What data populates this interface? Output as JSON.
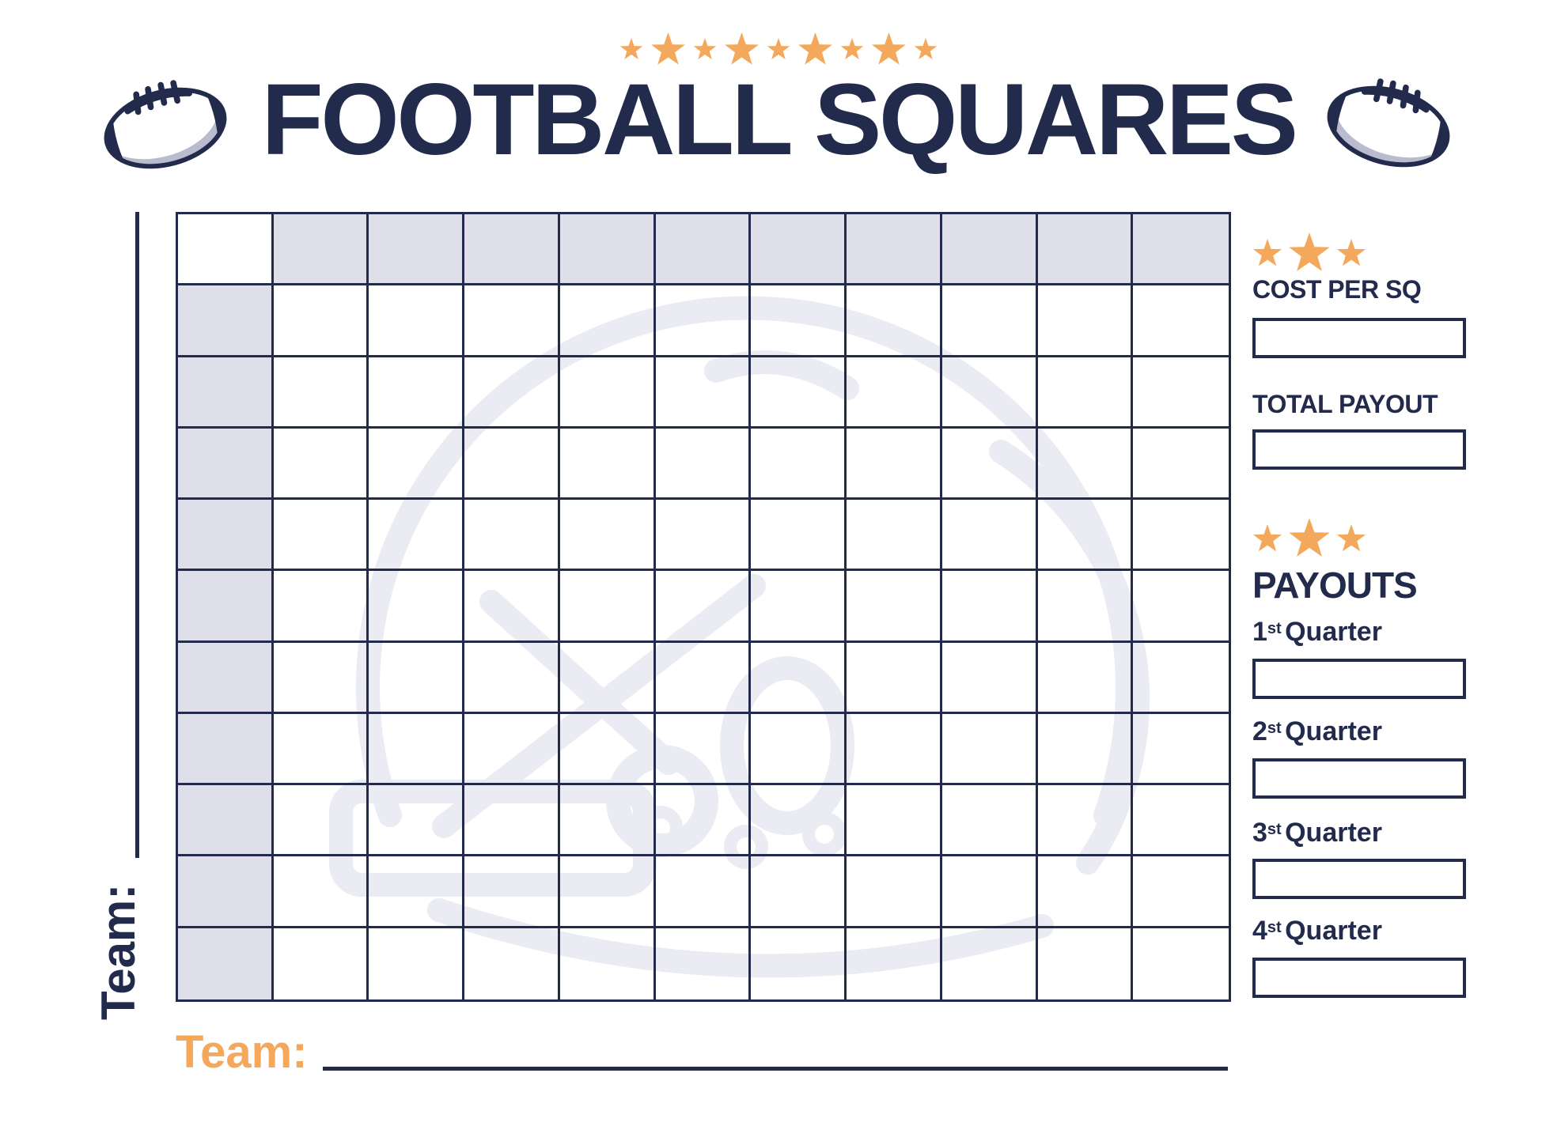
{
  "theme": {
    "navy": "#232B4D",
    "orange": "#F4A85C",
    "cell_shade": "#DEDFE8",
    "watermark": "#EAEBF3",
    "gray_shadow": "#B9BCCE"
  },
  "header": {
    "title": "FOOTBALL SQUARES",
    "stars_count": 9
  },
  "grid": {
    "rows": 11,
    "cols": 11,
    "shaded_top_row": true,
    "shaded_left_col": true,
    "corner_cell_shaded": false
  },
  "team_left": {
    "label": "Team:"
  },
  "team_bottom": {
    "label": "Team:"
  },
  "sidebar": {
    "stars_per_row": 3,
    "cost": {
      "label": "COST PER SQ",
      "value": ""
    },
    "total": {
      "label": "TOTAL PAYOUT",
      "value": ""
    },
    "payouts_title": "PAYOUTS",
    "quarters": [
      {
        "num": "1",
        "suffix": "st",
        "word": "Quarter",
        "value": ""
      },
      {
        "num": "2",
        "suffix": "st",
        "word": "Quarter",
        "value": ""
      },
      {
        "num": "3",
        "suffix": "st",
        "word": "Quarter",
        "value": ""
      },
      {
        "num": "4",
        "suffix": "st",
        "word": "Quarter",
        "value": ""
      }
    ]
  }
}
